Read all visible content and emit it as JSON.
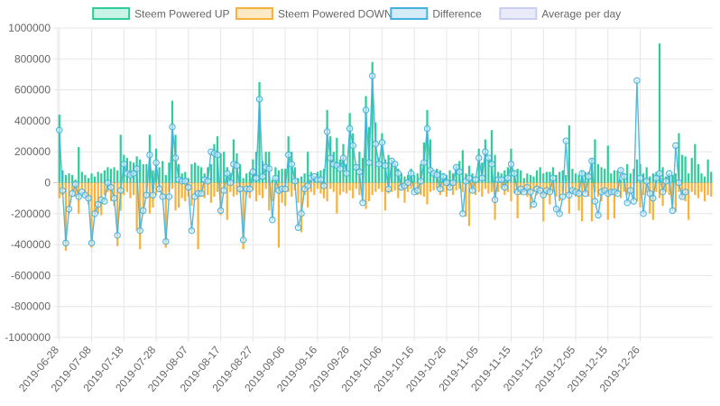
{
  "chart_data": {
    "type": "bar",
    "title": "",
    "xlabel": "",
    "ylabel": "",
    "ylim": [
      -1000000,
      1000000
    ],
    "y_ticks": [
      1000000,
      800000,
      600000,
      400000,
      200000,
      0,
      -200000,
      -400000,
      -600000,
      -800000,
      -1000000
    ],
    "y_tick_labels": [
      "1000000",
      "800000",
      "600000",
      "400000",
      "200000",
      "0",
      "-200000",
      "-400000",
      "-600000",
      "-800000",
      "-1000000"
    ],
    "x_tick_labels": [
      "2019-06-28",
      "2019-07-08",
      "2019-07-18",
      "2019-07-28",
      "2019-08-07",
      "2019-08-17",
      "2019-08-27",
      "2019-09-06",
      "2019-09-16",
      "2019-09-26",
      "2019-10-06",
      "2019-10-16",
      "2019-10-26",
      "2019-11-05",
      "2019-11-15",
      "2019-11-25",
      "2019-12-05",
      "2019-12-15",
      "2019-12-26"
    ],
    "x_start": "2019-06-28",
    "grid": true,
    "legend_position": "top",
    "colors": {
      "up": "#2ecc9a",
      "up_fill": "#c9f3e4",
      "down": "#f7b23b",
      "down_fill": "#fde9c4",
      "diff": "#45b0dd",
      "diff_fill": "#d3ecf8",
      "avg": "#c9cdf0",
      "avg_fill": "#e9ebf9",
      "grid": "#e6e6e6",
      "zero_line": "#cccccc"
    },
    "series": [
      {
        "name": "Steem Powered UP",
        "type": "bar",
        "values": [
          440000,
          80000,
          50000,
          60000,
          50000,
          20000,
          230000,
          70000,
          50000,
          30000,
          60000,
          40000,
          70000,
          60000,
          80000,
          100000,
          90000,
          100000,
          80000,
          310000,
          180000,
          160000,
          140000,
          130000,
          170000,
          150000,
          120000,
          120000,
          310000,
          80000,
          220000,
          100000,
          140000,
          50000,
          130000,
          530000,
          310000,
          120000,
          60000,
          70000,
          30000,
          120000,
          130000,
          110000,
          100000,
          60000,
          100000,
          120000,
          250000,
          300000,
          190000,
          200000,
          100000,
          60000,
          280000,
          190000,
          120000,
          30000,
          60000,
          70000,
          150000,
          200000,
          650000,
          140000,
          200000,
          200000,
          20000,
          100000,
          80000,
          90000,
          90000,
          300000,
          200000,
          100000,
          30000,
          40000,
          60000,
          200000,
          70000,
          30000,
          70000,
          80000,
          90000,
          470000,
          300000,
          200000,
          290000,
          150000,
          250000,
          120000,
          450000,
          320000,
          120000,
          200000,
          160000,
          560000,
          360000,
          780000,
          390000,
          160000,
          320000,
          150000,
          180000,
          150000,
          120000,
          90000,
          60000,
          40000,
          50000,
          90000,
          50000,
          60000,
          120000,
          260000,
          470000,
          280000,
          60000,
          90000,
          80000,
          60000,
          50000,
          80000,
          60000,
          110000,
          140000,
          210000,
          60000,
          110000,
          60000,
          40000,
          220000,
          130000,
          280000,
          160000,
          340000,
          180000,
          70000,
          60000,
          80000,
          100000,
          220000,
          80000,
          90000,
          80000,
          30000,
          60000,
          50000,
          40000,
          80000,
          100000,
          60000,
          70000,
          70000,
          100000,
          50000,
          70000,
          80000,
          50000,
          370000,
          90000,
          60000,
          50000,
          80000,
          70000,
          70000,
          160000,
          280000,
          120000,
          100000,
          90000,
          240000,
          60000,
          80000,
          80000,
          20000,
          60000,
          120000,
          60000,
          90000,
          150000,
          120000,
          60000,
          100000,
          40000,
          60000,
          70000,
          900000,
          100000,
          40000,
          60000,
          50000,
          60000,
          320000,
          180000,
          170000,
          60000,
          160000,
          250000,
          120000,
          60000,
          40000,
          150000,
          70000
        ]
      },
      {
        "name": "Steem Powered DOWN",
        "type": "bar",
        "values": [
          -100000,
          -80000,
          -440000,
          -200000,
          -50000,
          -90000,
          -200000,
          -40000,
          -80000,
          -140000,
          -420000,
          -200000,
          -200000,
          -210000,
          -80000,
          -60000,
          -120000,
          -150000,
          -410000,
          -180000,
          -80000,
          -60000,
          -100000,
          -80000,
          -310000,
          -430000,
          -200000,
          -80000,
          -200000,
          -160000,
          -80000,
          -50000,
          -100000,
          -420000,
          -60000,
          -40000,
          -180000,
          -160000,
          -100000,
          -120000,
          -90000,
          -150000,
          -80000,
          -430000,
          -90000,
          -100000,
          -80000,
          -130000,
          -90000,
          -60000,
          -210000,
          -40000,
          -240000,
          -60000,
          -90000,
          -80000,
          -60000,
          -430000,
          -80000,
          -100000,
          -50000,
          -120000,
          -80000,
          -100000,
          -40000,
          -180000,
          -120000,
          -60000,
          -420000,
          -130000,
          -150000,
          -60000,
          -90000,
          -50000,
          -130000,
          -320000,
          -80000,
          -160000,
          -60000,
          -80000,
          -40000,
          -70000,
          -100000,
          -120000,
          -40000,
          -60000,
          -200000,
          -80000,
          -60000,
          -70000,
          -50000,
          -100000,
          -40000,
          -80000,
          -60000,
          -170000,
          -120000,
          -80000,
          -60000,
          -40000,
          -60000,
          -180000,
          -70000,
          -60000,
          -50000,
          -100000,
          -50000,
          -130000,
          -60000,
          -40000,
          -50000,
          -80000,
          -80000,
          -90000,
          -140000,
          -60000,
          -50000,
          -40000,
          -80000,
          -60000,
          -90000,
          -40000,
          -80000,
          -50000,
          -40000,
          -60000,
          -220000,
          -280000,
          -50000,
          -80000,
          -60000,
          -90000,
          -40000,
          -70000,
          -60000,
          -240000,
          -60000,
          -40000,
          -80000,
          -60000,
          -120000,
          -70000,
          -230000,
          -80000,
          -60000,
          -90000,
          -170000,
          -60000,
          -80000,
          -60000,
          -250000,
          -80000,
          -140000,
          -60000,
          -90000,
          -120000,
          -60000,
          -80000,
          -200000,
          -60000,
          -90000,
          -180000,
          -250000,
          -70000,
          -90000,
          -250000,
          -60000,
          -90000,
          -120000,
          -70000,
          -240000,
          -80000,
          -230000,
          -60000,
          -100000,
          -60000,
          -80000,
          -60000,
          -100000,
          -120000,
          -160000,
          -80000,
          -60000,
          -200000,
          -240000,
          -60000,
          -100000,
          -150000,
          -60000,
          -80000,
          -140000,
          -190000,
          -60000,
          -100000,
          -120000,
          -240000,
          -60000,
          -80000,
          -100000,
          -60000,
          -120000,
          -80000,
          -90000,
          -120000
        ]
      },
      {
        "name": "Difference",
        "type": "line",
        "values": [
          340000,
          -50000,
          -390000,
          -170000,
          -70000,
          -10000,
          -90000,
          -60000,
          -80000,
          -100000,
          -390000,
          -200000,
          -140000,
          -110000,
          -120000,
          0,
          -30000,
          -100000,
          -340000,
          -50000,
          120000,
          60000,
          50000,
          60000,
          90000,
          -310000,
          -180000,
          -80000,
          180000,
          -80000,
          130000,
          -40000,
          -90000,
          -380000,
          -90000,
          360000,
          160000,
          20000,
          10000,
          10000,
          -30000,
          -310000,
          -90000,
          -70000,
          -70000,
          20000,
          10000,
          200000,
          190000,
          180000,
          -180000,
          -50000,
          60000,
          0,
          120000,
          110000,
          -40000,
          -370000,
          -40000,
          -40000,
          70000,
          30000,
          540000,
          40000,
          100000,
          90000,
          -240000,
          30000,
          -50000,
          -40000,
          -40000,
          180000,
          120000,
          10000,
          -290000,
          -200000,
          -40000,
          -20000,
          30000,
          40000,
          20000,
          20000,
          -20000,
          330000,
          160000,
          120000,
          110000,
          90000,
          160000,
          60000,
          350000,
          240000,
          100000,
          70000,
          -130000,
          470000,
          130000,
          690000,
          250000,
          120000,
          260000,
          110000,
          -40000,
          140000,
          120000,
          60000,
          -30000,
          -20000,
          0,
          60000,
          -60000,
          -50000,
          10000,
          130000,
          350000,
          80000,
          60000,
          50000,
          -40000,
          40000,
          0,
          -30000,
          0,
          100000,
          70000,
          -200000,
          10000,
          30000,
          -50000,
          20000,
          160000,
          30000,
          200000,
          160000,
          120000,
          -110000,
          20000,
          20000,
          -30000,
          30000,
          120000,
          60000,
          -60000,
          -40000,
          -60000,
          -30000,
          -60000,
          -140000,
          -40000,
          -50000,
          -80000,
          -50000,
          -60000,
          30000,
          -170000,
          -200000,
          -90000,
          270000,
          -80000,
          -50000,
          -60000,
          -70000,
          60000,
          -70000,
          40000,
          140000,
          -120000,
          -210000,
          -60000,
          -50000,
          -70000,
          -60000,
          -60000,
          -70000,
          80000,
          40000,
          -130000,
          -50000,
          -120000,
          660000,
          30000,
          -200000,
          10000,
          -70000,
          -100000,
          30000,
          60000,
          -60000,
          10000,
          60000,
          -180000,
          240000,
          0,
          -90000,
          -60000
        ]
      },
      {
        "name": "Average per day",
        "type": "line",
        "values": []
      }
    ]
  },
  "legend": {
    "items": [
      {
        "label": "Steem Powered UP",
        "key": "up"
      },
      {
        "label": "Steem Powered DOWN",
        "key": "down"
      },
      {
        "label": "Difference",
        "key": "diff"
      },
      {
        "label": "Average per day",
        "key": "avg"
      }
    ]
  }
}
